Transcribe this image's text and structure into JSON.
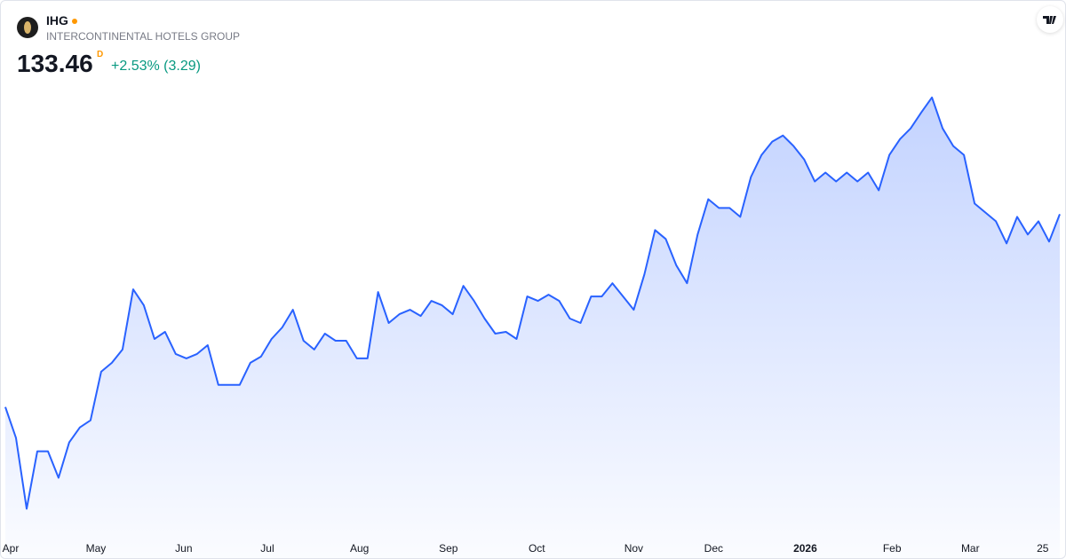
{
  "header": {
    "symbol": "IHG",
    "name": "INTERCONTINENTAL HOTELS GROUP",
    "price": "133.46",
    "interval": "D",
    "change": "+2.53% (3.29)"
  },
  "chart_data": {
    "type": "area",
    "color": "#2962ff",
    "values": [
      111.73,
      108.24,
      100.26,
      106.74,
      106.74,
      103.75,
      107.74,
      109.43,
      110.23,
      115.71,
      116.71,
      118.21,
      124.99,
      123.19,
      119.4,
      120.2,
      117.71,
      117.21,
      117.71,
      118.7,
      114.22,
      114.22,
      114.22,
      116.71,
      117.41,
      119.4,
      120.7,
      122.69,
      119.2,
      118.21,
      120.0,
      119.2,
      119.2,
      117.21,
      117.21,
      124.69,
      121.2,
      122.19,
      122.69,
      121.99,
      123.69,
      123.19,
      122.19,
      125.38,
      123.69,
      121.7,
      120.0,
      120.2,
      119.4,
      124.19,
      123.69,
      124.39,
      123.69,
      121.7,
      121.2,
      124.19,
      124.19,
      125.68,
      124.19,
      122.69,
      126.68,
      131.67,
      130.67,
      127.68,
      125.68,
      131.17,
      135.15,
      134.16,
      134.16,
      133.16,
      137.65,
      140.14,
      141.64,
      142.33,
      141.14,
      139.64,
      137.15,
      138.15,
      137.15,
      138.15,
      137.15,
      138.15,
      136.15,
      140.14,
      141.93,
      143.13,
      144.93,
      146.62,
      143.13,
      141.14,
      140.14,
      134.66,
      133.66,
      132.66,
      130.17,
      133.16,
      131.17,
      132.66,
      130.37,
      133.46
    ],
    "ylim": [
      97,
      148
    ],
    "xlim": [
      0,
      99
    ],
    "xticks": [
      {
        "value": 0.5,
        "label": "Apr"
      },
      {
        "value": 8.5,
        "label": "May"
      },
      {
        "value": 16.75,
        "label": "Jun"
      },
      {
        "value": 24.6,
        "label": "Jul"
      },
      {
        "value": 33.25,
        "label": "Aug"
      },
      {
        "value": 41.6,
        "label": "Sep"
      },
      {
        "value": 49.9,
        "label": "Oct"
      },
      {
        "value": 59,
        "label": "Nov"
      },
      {
        "value": 66.5,
        "label": "Dec"
      },
      {
        "value": 75.1,
        "label": "2026"
      },
      {
        "value": 83.25,
        "label": "Feb"
      },
      {
        "value": 90.6,
        "label": "Mar"
      },
      {
        "value": 97.4,
        "label": "25"
      }
    ]
  }
}
